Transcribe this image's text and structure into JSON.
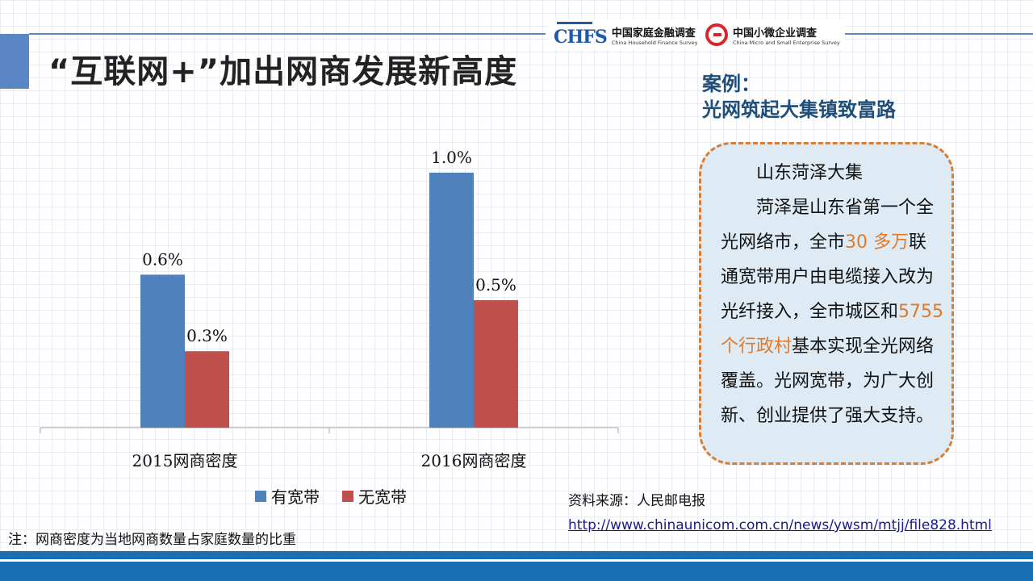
{
  "header": {
    "title": "“互联网+”加出网商发展新高度",
    "logos": [
      {
        "mark": "CHFS",
        "cn": "中国家庭金融调查",
        "en": "China Household Finance Survey"
      },
      {
        "cn": "中国小微企业调查",
        "en": "China Micro and Small Enterprise Survey"
      }
    ]
  },
  "chart_data": {
    "type": "bar",
    "categories": [
      "2015网商密度",
      "2016网商密度"
    ],
    "series": [
      {
        "name": "有宽带",
        "values": [
          0.6,
          1.0
        ],
        "labels": [
          "0.6%",
          "1.0%"
        ],
        "color": "#4f81bd"
      },
      {
        "name": "无宽带",
        "values": [
          0.3,
          0.5
        ],
        "labels": [
          "0.3%",
          "0.5%"
        ],
        "color": "#c0504d"
      }
    ],
    "legend_position": "bottom",
    "grid": false
  },
  "case": {
    "heading_line1": "案例：",
    "heading_line2": "光网筑起大集镇致富路",
    "box_title": "山东菏泽大集",
    "text_a": "菏泽是山东省第一个全光网络市，全市",
    "highlight_1": "30 多万",
    "text_b": "联通宽带用户由电缆接入改为光纤接入，全市城区和",
    "highlight_2": "5755个行政村",
    "text_c": "基本实现全光网络覆盖。光网宽带，为广大创新、创业提供了强大支持。"
  },
  "source": {
    "label": "资料来源：人民邮电报",
    "url": "http://www.chinaunicom.com.cn/news/ywsm/mtjj/file828.html"
  },
  "note": "注：网商密度为当地网商数量占家庭数量的比重",
  "colors": {
    "accent": "#5b86c5",
    "highlight": "#e07a2b",
    "band": "#1a6fb2"
  }
}
